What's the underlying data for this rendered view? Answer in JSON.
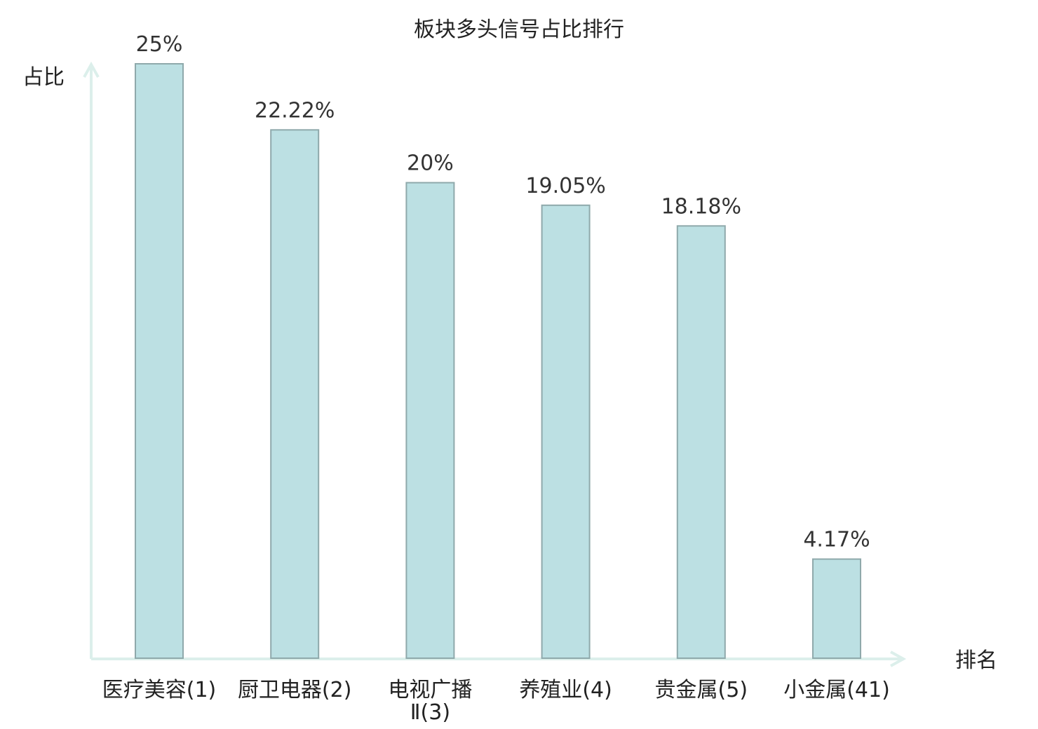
{
  "chart_data": {
    "type": "bar",
    "title": "板块多头信号占比排行",
    "ylabel": "占比",
    "xlabel": "排名",
    "ylim": [
      0,
      25
    ],
    "categories": [
      {
        "line1": "医疗美容(1)",
        "line2": ""
      },
      {
        "line1": "厨卫电器(2)",
        "line2": ""
      },
      {
        "line1": "电视广播",
        "line2": "Ⅱ(3)"
      },
      {
        "line1": "养殖业(4)",
        "line2": ""
      },
      {
        "line1": "贵金属(5)",
        "line2": ""
      },
      {
        "line1": "小金属(41)",
        "line2": ""
      }
    ],
    "values": [
      25,
      22.22,
      20,
      19.05,
      18.18,
      4.17
    ],
    "value_labels": [
      "25%",
      "22.22%",
      "20%",
      "19.05%",
      "18.18%",
      "4.17%"
    ],
    "highlight_index": 5,
    "colors": {
      "bar_fill": "#bce0e3",
      "bar_stroke": "#8fa9ab",
      "axis": "#dcefeb",
      "highlight_label": "#e02020",
      "label": "#222222"
    }
  }
}
